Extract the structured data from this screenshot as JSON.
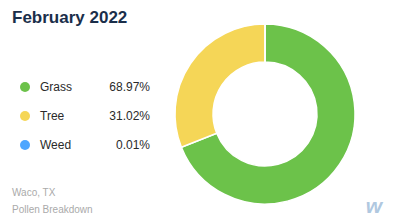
{
  "chart_data": {
    "type": "pie",
    "title": "February 2022",
    "categories": [
      "Grass",
      "Tree",
      "Weed"
    ],
    "values": [
      68.97,
      31.02,
      0.01
    ],
    "value_labels": [
      "68.97%",
      "31.02%",
      "0.01%"
    ],
    "colors": [
      "#6cc24a",
      "#f5d657",
      "#4da6ff"
    ],
    "legend": "left",
    "annotations": [
      "Waco, TX",
      "Pollen Breakdown",
      "w"
    ]
  }
}
